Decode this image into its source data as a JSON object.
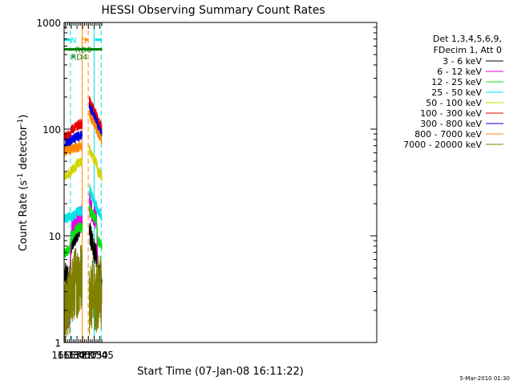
{
  "chart_data": {
    "type": "line",
    "title": "HESSI Observing Summary Count Rates",
    "xlabel": "Start Time (07-Jan-08 16:11:22)",
    "ylabel_main": "Count Rate (s",
    "ylabel_sup1": "-1",
    "ylabel_mid": " detector",
    "ylabel_sup2": "-1",
    "ylabel_end": ")",
    "yscale": "log",
    "ylim": [
      1,
      1000
    ],
    "xlim_min": [
      971.4,
      1790
    ],
    "x_tick_labels": [
      "16:15",
      "16:30",
      "16:45",
      "17:00",
      "17:15",
      "17:30",
      "17:45"
    ],
    "x_tick_values": [
      975,
      990,
      1005,
      1020,
      1035,
      1050,
      1065
    ],
    "y_tick_labels": [
      "1",
      "10",
      "100",
      "1000"
    ],
    "y_tick_values": [
      1,
      10,
      100,
      1000
    ],
    "legend_header": [
      "Det 1,3,4,5,6,9,",
      "FDecim 1, Att 0"
    ],
    "data_gap_min": [
      1018.5,
      1036.5
    ],
    "series": [
      {
        "name": "3 - 6 keV",
        "color": "#000000",
        "base": [
          4.7,
          3.5,
          9.5,
          10.5,
          12.0,
          13.5,
          null,
          11.0,
          9.0,
          7.5,
          6.3,
          4.5,
          4.3,
          4.0
        ]
      },
      {
        "name": "6 - 12 keV",
        "color": "#e600e6",
        "base": [
          1.7,
          1.8,
          12.0,
          13.0,
          14.0,
          15.0,
          null,
          20.0,
          17.0,
          15.5,
          14.0,
          2.5,
          2.5,
          2.5
        ]
      },
      {
        "name": "12 - 25 keV",
        "color": "#00e600",
        "base": [
          6.8,
          7.5,
          10.0,
          11.0,
          12.0,
          12.0,
          null,
          18.0,
          16.0,
          15.0,
          14.0,
          9.0,
          8.5,
          8.0
        ]
      },
      {
        "name": "25 - 50 keV",
        "color": "#00e6e6",
        "base": [
          14.5,
          15.0,
          15.0,
          16.0,
          17.0,
          17.0,
          null,
          28.0,
          24.0,
          21.0,
          19.0,
          17.0,
          16.0,
          15.0
        ]
      },
      {
        "name": "50 - 100 keV",
        "color": "#d4d400",
        "base": [
          36.0,
          38.0,
          42.0,
          44.0,
          48.0,
          50.0,
          null,
          65.0,
          58.0,
          52.0,
          48.0,
          40.0,
          38.0,
          36.0
        ]
      },
      {
        "name": "100 - 300 keV",
        "color": "#e60000",
        "base": [
          85.0,
          88.0,
          100.0,
          105.0,
          110.0,
          112.0,
          null,
          185.0,
          165.0,
          150.0,
          135.0,
          120.0,
          110.0,
          100.0
        ]
      },
      {
        "name": "300 - 800 keV",
        "color": "#0000e6",
        "base": [
          72.0,
          75.0,
          80.0,
          82.0,
          85.0,
          88.0,
          null,
          160.0,
          145.0,
          130.0,
          118.0,
          105.0,
          95.0,
          88.0
        ]
      },
      {
        "name": "800 - 7000 keV",
        "color": "#ff8800",
        "base": [
          62.0,
          64.0,
          66.0,
          66.0,
          68.0,
          70.0,
          null,
          140.0,
          125.0,
          112.0,
          100.0,
          92.0,
          85.0,
          78.0
        ]
      },
      {
        "name": "7000 - 20000 keV",
        "color": "#808000",
        "base": [
          2.0,
          2.5,
          3.0,
          3.5,
          3.8,
          3.8,
          null,
          2.5,
          3.0,
          2.8,
          2.5,
          3.0,
          3.0,
          2.8
        ]
      }
    ],
    "series_x_min": [
      973,
      985,
      992,
      1000,
      1008,
      1016,
      1025,
      1037,
      1044,
      1050,
      1056,
      1060,
      1066,
      1070
    ],
    "flags": [
      {
        "label": "N",
        "color": "#00e6e6",
        "y": 690,
        "x_min": [
          [
            972,
            987
          ],
          [
            1052,
            1070
          ]
        ]
      },
      {
        "label": "S",
        "color": "#ff8800",
        "y": 690,
        "x_min": [
          [
            1026,
            1029
          ],
          [
            1029,
            1031
          ],
          [
            1031,
            1033
          ],
          [
            1033,
            1035
          ]
        ]
      },
      {
        "label": "RD0",
        "color": "#008000",
        "y": 560,
        "x_min": [
          [
            972,
            1071
          ]
        ]
      },
      {
        "label": "RD4",
        "color": "#008000",
        "y": 480,
        "x_min": [
          [
            994,
            997
          ]
        ]
      }
    ],
    "flag_label_positions": {
      "N": 988.5,
      "S": 1017.5,
      "RD0": 1000,
      "RD4": 989
    },
    "vlines": [
      {
        "color": "#00e6e6",
        "style": "dashed",
        "x_min": 988
      },
      {
        "color": "#00e6e6",
        "style": "solid",
        "x_min": 1050
      },
      {
        "color": "#00e6e6",
        "style": "dashed",
        "x_min": 1068.5
      },
      {
        "color": "#ff8800",
        "style": "solid",
        "x_min": 1018.5
      },
      {
        "color": "#ff8800",
        "style": "dashed",
        "x_min": 1034.5
      }
    ],
    "grid": false,
    "legend_position": "right"
  },
  "footer_stamp": "5-Mar-2010 01:30"
}
